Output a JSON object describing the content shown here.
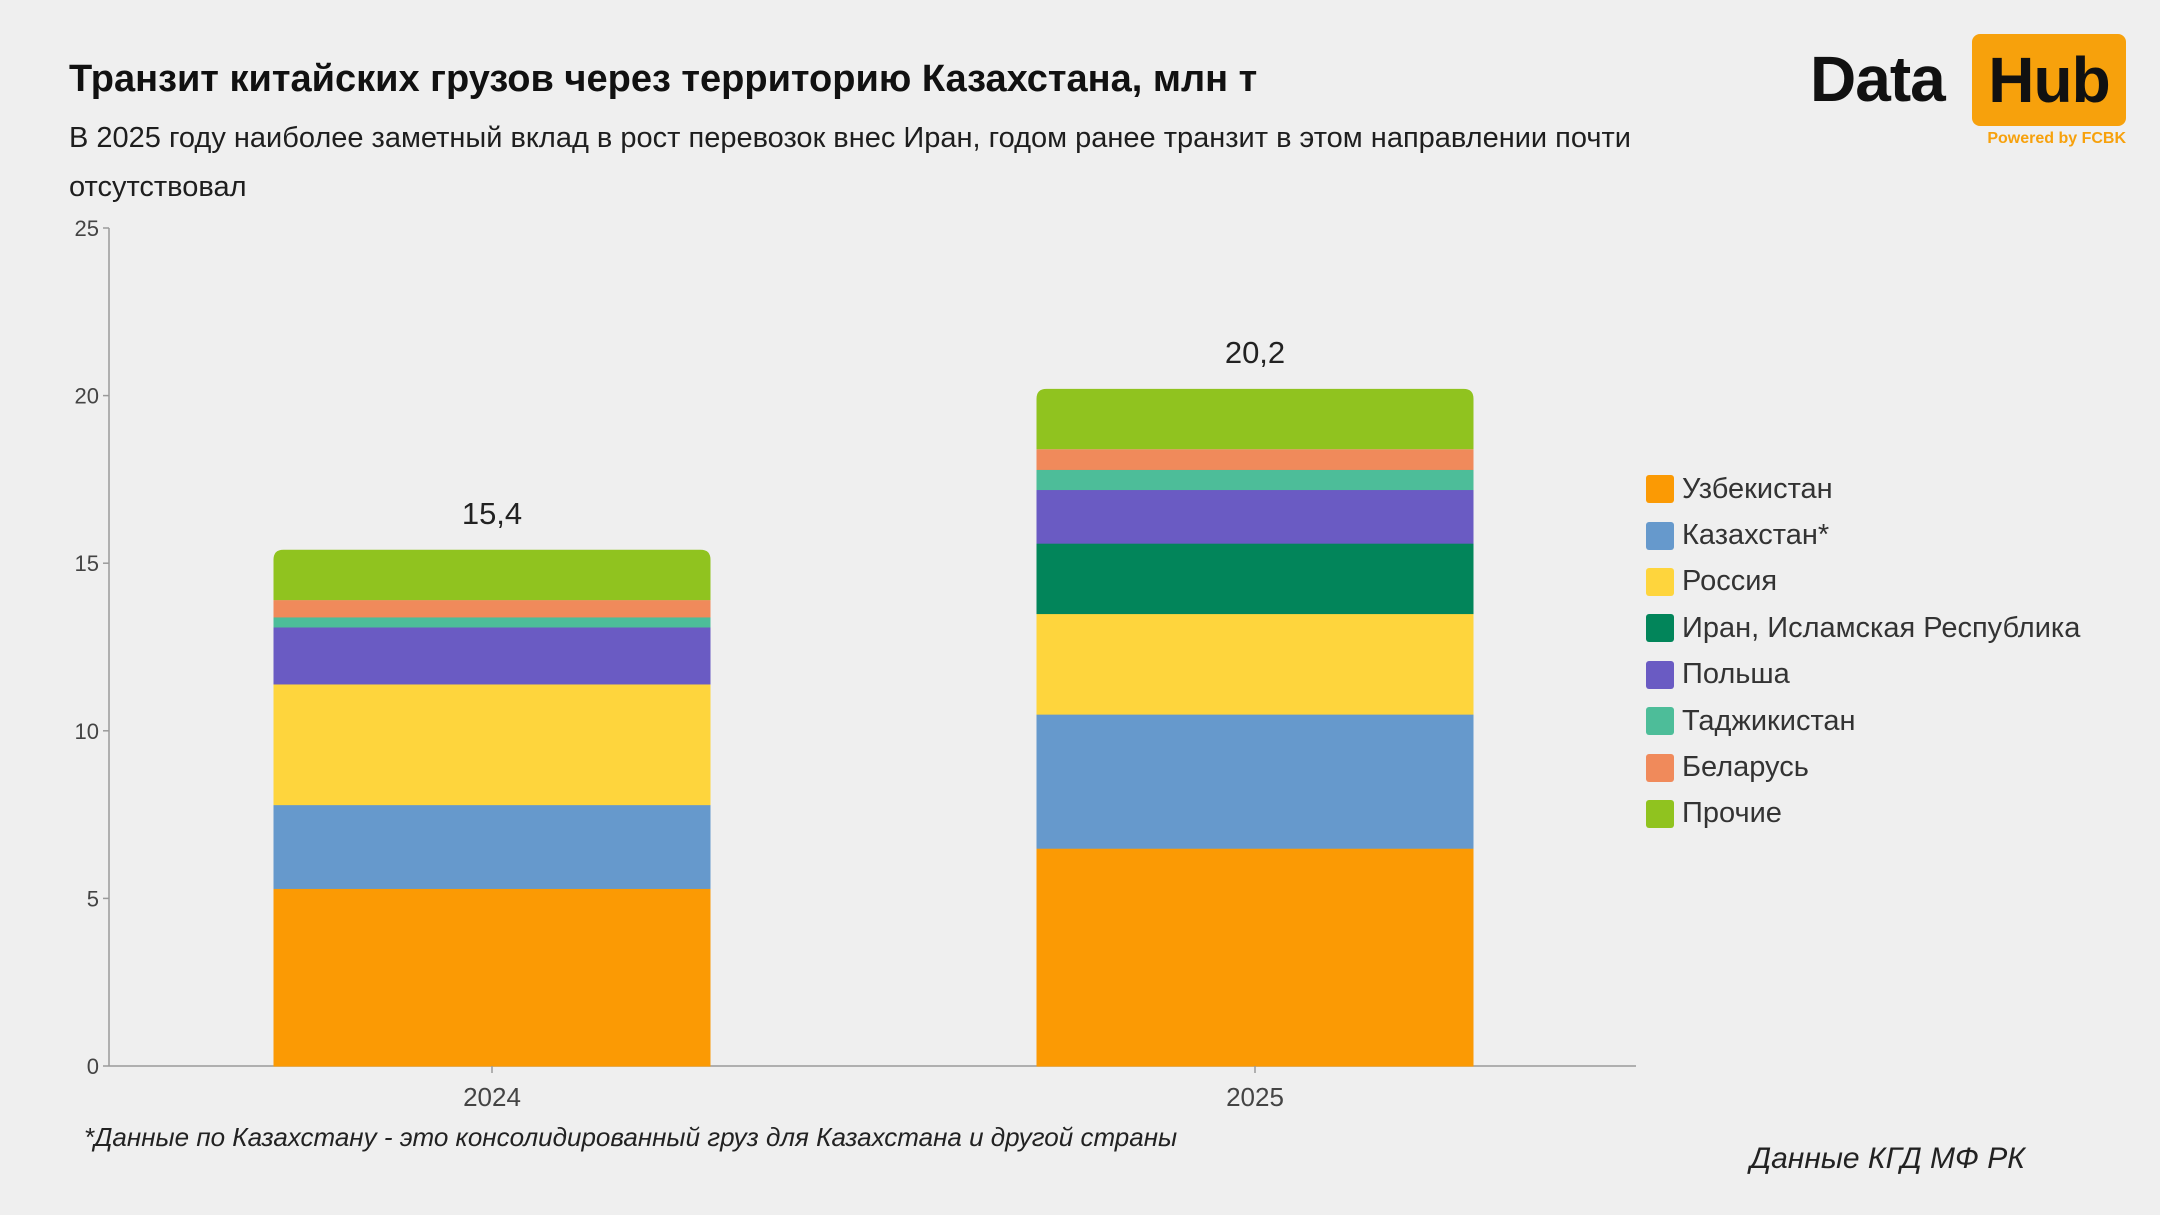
{
  "header": {
    "title": "Транзит китайских грузов через территорию Казахстана, млн т",
    "subtitle": "В 2025 году наиболее заметный вклад в рост перевозок внес Иран, годом ранее транзит в этом направлении почти отсутствовал"
  },
  "logo": {
    "word_data": "Data",
    "word_hub": "Hub",
    "powered": "Powered by FCBK",
    "accent_color": "#f7a10c"
  },
  "footnote": "*Данные по Казахстану - это консолидированный груз для Казахстана и другой страны",
  "source": "Данные КГД МФ РК",
  "chart_data": {
    "type": "bar",
    "stacked": true,
    "categories": [
      "2024",
      "2025"
    ],
    "totals": [
      "15,4",
      "20,2"
    ],
    "ylim": [
      0,
      25
    ],
    "yticks": [
      0,
      5,
      10,
      15,
      20,
      25
    ],
    "grid": false,
    "legend_position": "right",
    "series": [
      {
        "name": "Узбекистан",
        "color": "#fb9a04",
        "values": [
          5.3,
          6.5
        ]
      },
      {
        "name": "Казахстан*",
        "color": "#6699cc",
        "values": [
          2.5,
          4.0
        ]
      },
      {
        "name": "Россия",
        "color": "#fed53d",
        "values": [
          3.6,
          3.0
        ]
      },
      {
        "name": "Иран, Исламская Республика",
        "color": "#02855a",
        "values": [
          0.0,
          2.1
        ]
      },
      {
        "name": "Польша",
        "color": "#6a5bc3",
        "values": [
          1.7,
          1.6
        ]
      },
      {
        "name": "Таджикистан",
        "color": "#4dbd99",
        "values": [
          0.3,
          0.6
        ]
      },
      {
        "name": "Беларусь",
        "color": "#f08a5b",
        "values": [
          0.5,
          0.6
        ]
      },
      {
        "name": "Прочие",
        "color": "#90c31f",
        "values": [
          1.5,
          1.8
        ]
      }
    ]
  }
}
